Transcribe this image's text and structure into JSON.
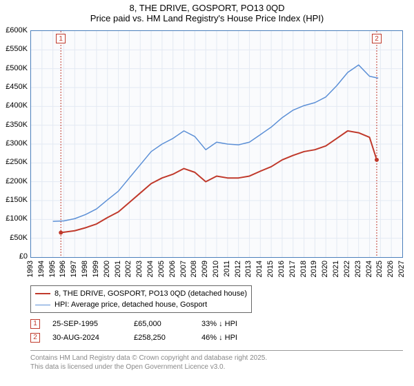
{
  "header": {
    "line1": "8, THE DRIVE, GOSPORT, PO13 0QD",
    "line2": "Price paid vs. HM Land Registry's House Price Index (HPI)"
  },
  "chart": {
    "type": "line",
    "background_color": "#fafbfd",
    "border_color": "#4a7ebb",
    "grid_color": "#e3e9f2",
    "ylim": [
      0,
      600000
    ],
    "ytick_step": 50000,
    "ylabels": [
      "£0",
      "£50K",
      "£100K",
      "£150K",
      "£200K",
      "£250K",
      "£300K",
      "£350K",
      "£400K",
      "£450K",
      "£500K",
      "£550K",
      "£600K"
    ],
    "xlim": [
      1993,
      2027
    ],
    "xticks": [
      1993,
      1994,
      1995,
      1996,
      1997,
      1998,
      1999,
      2000,
      2001,
      2002,
      2003,
      2004,
      2005,
      2006,
      2007,
      2008,
      2009,
      2010,
      2011,
      2012,
      2013,
      2014,
      2015,
      2016,
      2017,
      2018,
      2019,
      2020,
      2021,
      2022,
      2023,
      2024,
      2025,
      2026,
      2027
    ],
    "series": [
      {
        "name": "red",
        "color": "#c0392b",
        "line_width": 2,
        "data": [
          [
            1995.73,
            65000
          ],
          [
            1996,
            66000
          ],
          [
            1997,
            70000
          ],
          [
            1998,
            78000
          ],
          [
            1999,
            88000
          ],
          [
            2000,
            105000
          ],
          [
            2001,
            120000
          ],
          [
            2002,
            145000
          ],
          [
            2003,
            170000
          ],
          [
            2004,
            195000
          ],
          [
            2005,
            210000
          ],
          [
            2006,
            220000
          ],
          [
            2007,
            235000
          ],
          [
            2008,
            225000
          ],
          [
            2009,
            200000
          ],
          [
            2010,
            215000
          ],
          [
            2011,
            210000
          ],
          [
            2012,
            210000
          ],
          [
            2013,
            215000
          ],
          [
            2014,
            228000
          ],
          [
            2015,
            240000
          ],
          [
            2016,
            258000
          ],
          [
            2017,
            270000
          ],
          [
            2018,
            280000
          ],
          [
            2019,
            285000
          ],
          [
            2020,
            295000
          ],
          [
            2021,
            315000
          ],
          [
            2022,
            335000
          ],
          [
            2023,
            330000
          ],
          [
            2024,
            318000
          ],
          [
            2024.66,
            258250
          ]
        ],
        "start_marker": {
          "x": 1995.73,
          "y": 65000,
          "radius": 3
        },
        "end_marker": {
          "x": 2024.66,
          "y": 258250,
          "radius": 3
        }
      },
      {
        "name": "blue",
        "color": "#5b8fd6",
        "line_width": 1.5,
        "data": [
          [
            1995,
            95000
          ],
          [
            1996,
            96000
          ],
          [
            1997,
            102000
          ],
          [
            1998,
            113000
          ],
          [
            1999,
            128000
          ],
          [
            2000,
            152000
          ],
          [
            2001,
            175000
          ],
          [
            2002,
            210000
          ],
          [
            2003,
            245000
          ],
          [
            2004,
            280000
          ],
          [
            2005,
            300000
          ],
          [
            2006,
            315000
          ],
          [
            2007,
            335000
          ],
          [
            2008,
            320000
          ],
          [
            2009,
            285000
          ],
          [
            2010,
            305000
          ],
          [
            2011,
            300000
          ],
          [
            2012,
            298000
          ],
          [
            2013,
            305000
          ],
          [
            2014,
            325000
          ],
          [
            2015,
            345000
          ],
          [
            2016,
            370000
          ],
          [
            2017,
            390000
          ],
          [
            2018,
            402000
          ],
          [
            2019,
            410000
          ],
          [
            2020,
            425000
          ],
          [
            2021,
            455000
          ],
          [
            2022,
            490000
          ],
          [
            2023,
            510000
          ],
          [
            2024,
            480000
          ],
          [
            2024.8,
            475000
          ]
        ]
      }
    ],
    "markers": [
      {
        "id": "1",
        "x": 1995.73,
        "color": "#c0392b"
      },
      {
        "id": "2",
        "x": 2024.66,
        "color": "#c0392b"
      }
    ]
  },
  "legend": {
    "items": [
      {
        "color": "#c0392b",
        "width": 2,
        "label": "8, THE DRIVE, GOSPORT, PO13 0QD (detached house)"
      },
      {
        "color": "#5b8fd6",
        "width": 1.5,
        "label": "HPI: Average price, detached house, Gosport"
      }
    ]
  },
  "datapoints": [
    {
      "marker": "1",
      "marker_color": "#c0392b",
      "date": "25-SEP-1995",
      "price": "£65,000",
      "diff": "33%",
      "diff_suffix": "HPI"
    },
    {
      "marker": "2",
      "marker_color": "#c0392b",
      "date": "30-AUG-2024",
      "price": "£258,250",
      "diff": "46%",
      "diff_suffix": "HPI"
    }
  ],
  "footer": {
    "line1": "Contains HM Land Registry data © Crown copyright and database right 2025.",
    "line2": "This data is licensed under the Open Government Licence v3.0."
  }
}
